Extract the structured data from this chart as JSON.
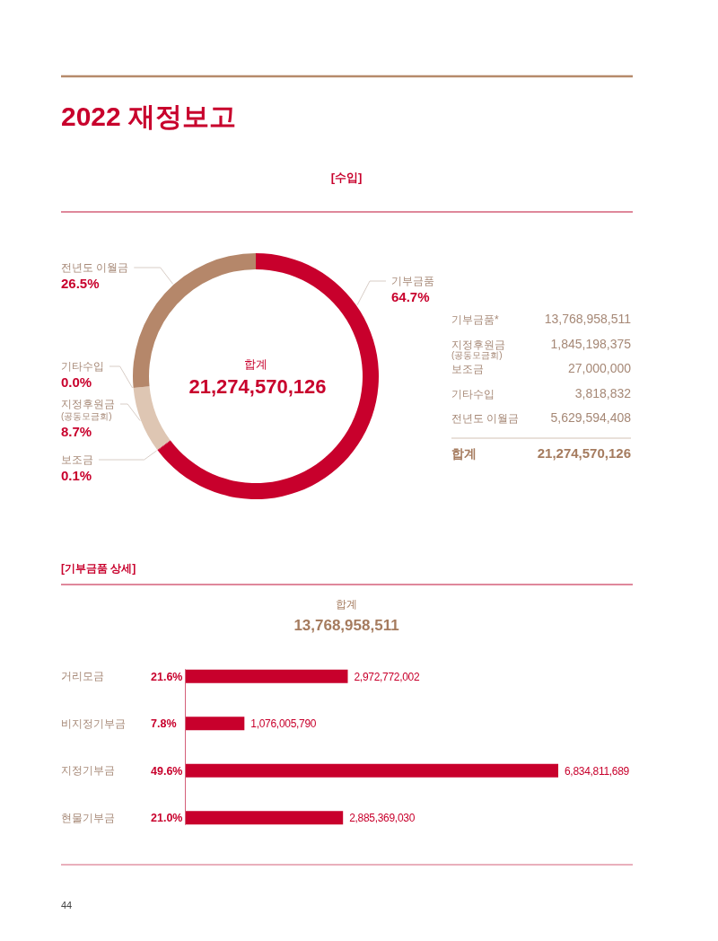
{
  "chart_data": [
    {
      "type": "donut",
      "title": "2022 재정보고",
      "subtitle": "[수입]",
      "categories": [
        "기부금품",
        "보조금",
        "지정후원금\n(공동모금회)",
        "기타수입",
        "전년도 이월금"
      ],
      "values": [
        64.7,
        0.1,
        8.7,
        0.0,
        26.5
      ],
      "colors": [
        "#c8002c",
        "#c8002c",
        "#dec6b3",
        null,
        "#b5876a"
      ],
      "value_labels": [
        "64.7%",
        "0.1%",
        "8.7%",
        "0.0%",
        "26.5%"
      ],
      "annotations": [
        "합계",
        "21,274,570,126"
      ]
    },
    {
      "type": "other",
      "categories": [
        "기부금품*",
        "지정후원금\n(공동모금회)",
        "보조금",
        "기타수입",
        "전년도 이월금"
      ],
      "value_labels": [
        "13,768,958,511",
        "1,845,198,375",
        "27,000,000",
        "3,818,832",
        "5,629,594,408"
      ],
      "annotations": [
        "합계",
        "21,274,570,126"
      ]
    },
    {
      "type": "bar",
      "orientation": "horizontal",
      "title": "[기부금품 상세]",
      "categories": [
        "거리모금",
        "비지정기부금",
        "지정기부금",
        "현물기부금"
      ],
      "values": [
        2972772002,
        1076005790,
        6834811689,
        2885369030
      ],
      "color": "#c8002c",
      "value_labels": [
        "2,972,772,002",
        "1,076,005,790",
        "6,834,811,689",
        "2,885,369,030"
      ],
      "annotations": [
        "합계",
        "13,768,958,511",
        "21.6%",
        "7.8%",
        "49.6%",
        "21.0%",
        "44"
      ]
    }
  ]
}
